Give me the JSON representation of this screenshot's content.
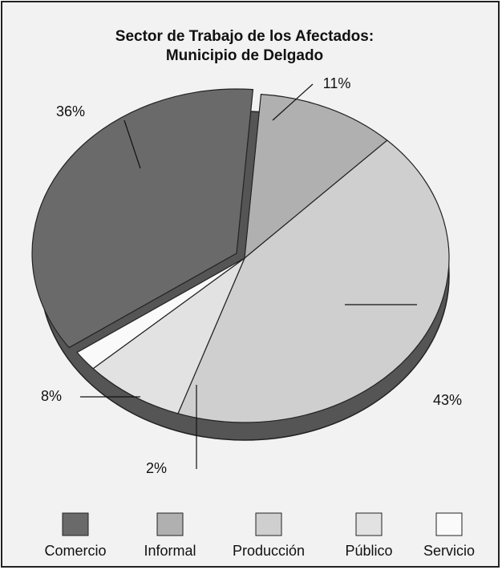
{
  "chart_data": {
    "type": "pie",
    "title_lines": [
      "Sector de Trabajo de los Afectados:",
      "Municipio de Delgado"
    ],
    "categories": [
      "Comercio",
      "Informal",
      "Producción",
      "Público",
      "Servicio"
    ],
    "values": [
      36,
      11,
      43,
      8,
      2
    ],
    "value_labels": [
      "36%",
      "11%",
      "43%",
      "8%",
      "2%"
    ],
    "colors": [
      "#6a6a6a",
      "#b0b0b0",
      "#cfcfcf",
      "#e2e2e2",
      "#fafafa"
    ],
    "legend": "bottom"
  }
}
